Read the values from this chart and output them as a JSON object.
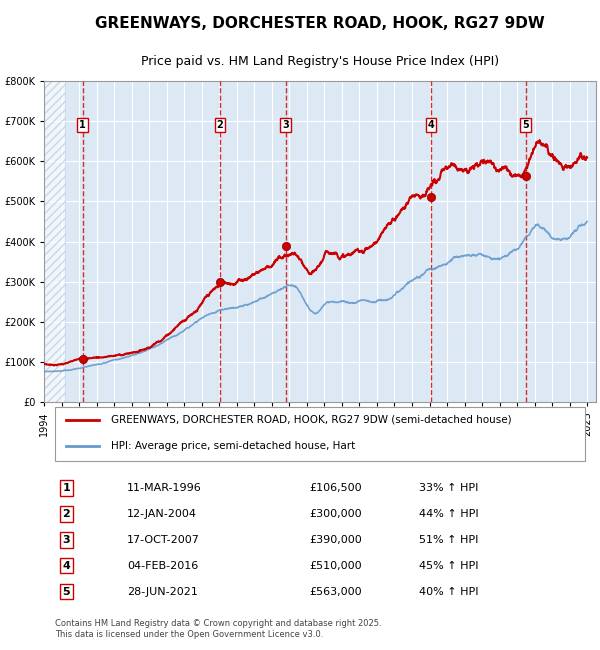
{
  "title": "GREENWAYS, DORCHESTER ROAD, HOOK, RG27 9DW",
  "subtitle": "Price paid vs. HM Land Registry's House Price Index (HPI)",
  "background_color": "#dce9f5",
  "plot_bg_color": "#dce9f5",
  "hatch_color": "#b0c4de",
  "red_line_color": "#cc0000",
  "blue_line_color": "#6699cc",
  "red_dot_color": "#cc0000",
  "vline_color": "#cc0000",
  "sale_dates": [
    1996.19,
    2004.03,
    2007.79,
    2016.09,
    2021.49
  ],
  "sale_prices": [
    106500,
    300000,
    390000,
    510000,
    563000
  ],
  "sale_labels": [
    "1",
    "2",
    "3",
    "4",
    "5"
  ],
  "sale_date_strings": [
    "11-MAR-1996",
    "12-JAN-2004",
    "17-OCT-2007",
    "04-FEB-2016",
    "28-JUN-2021"
  ],
  "sale_price_strings": [
    "£106,500",
    "£300,000",
    "£390,000",
    "£510,000",
    "£563,000"
  ],
  "sale_hpi_strings": [
    "33% ↑ HPI",
    "44% ↑ HPI",
    "51% ↑ HPI",
    "45% ↑ HPI",
    "40% ↑ HPI"
  ],
  "ylim": [
    0,
    800000
  ],
  "yticks": [
    0,
    100000,
    200000,
    300000,
    400000,
    500000,
    600000,
    700000,
    800000
  ],
  "ytick_labels": [
    "£0",
    "£100K",
    "£200K",
    "£300K",
    "£400K",
    "£500K",
    "£600K",
    "£700K",
    "£800K"
  ],
  "xmin": 1994.0,
  "xmax": 2025.5,
  "legend_line1": "GREENWAYS, DORCHESTER ROAD, HOOK, RG27 9DW (semi-detached house)",
  "legend_line2": "HPI: Average price, semi-detached house, Hart",
  "footer": "Contains HM Land Registry data © Crown copyright and database right 2025.\nThis data is licensed under the Open Government Licence v3.0."
}
